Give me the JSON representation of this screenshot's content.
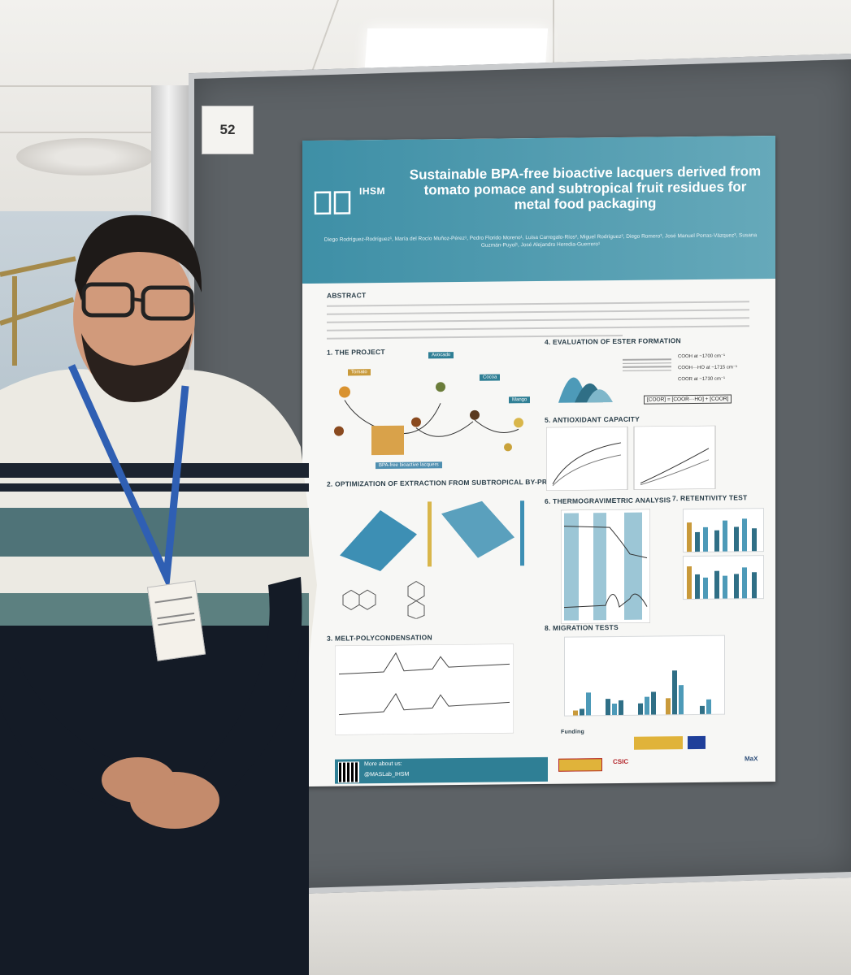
{
  "board": {
    "number": "52"
  },
  "poster": {
    "institute_logo": "IHSM",
    "title": "Sustainable BPA-free bioactive lacquers derived from tomato pomace and subtropical fruit residues for metal food packaging",
    "authors": "Diego Rodríguez-Rodríguez¹, María del Rocío Muñoz-Pérez¹, Pedro Florido Moreno¹, Luisa Carregalo-Ríos², Miguel Rodríguez², Diego Romero³, José Manuel Porras-Vázquez³, Susana Guzmán-Puyol¹, José Alejandro Heredia-Guerrero¹",
    "sections": {
      "abstract": "ABSTRACT",
      "project": "1. THE PROJECT",
      "optimization": "2. OPTIMIZATION OF EXTRACTION FROM SUBTROPICAL BY-PRODUCTS",
      "melt": "3. MELT-POLYCONDENSATION",
      "ester": "4. EVALUATION OF ESTER FORMATION",
      "antioxidant": "5. ANTIOXIDANT CAPACITY",
      "thermo": "6. THERMOGRAVIMETRIC ANALYSIS",
      "retentivity": "7. RETENTIVITY TEST",
      "migration": "8. MIGRATION TESTS"
    },
    "project_labels": {
      "tomato": "Tomato",
      "avocado": "Avocado",
      "cocoa": "Cocoa",
      "mango": "Mango",
      "lacquers": "BPA-free bioactive lacquers"
    },
    "ester_legend": [
      "COOH at ~1700 cm⁻¹",
      "COOH···HO at ~1715 cm⁻¹",
      "COOR at ~1730 cm⁻¹"
    ],
    "ester_formula": "[COOR] = [COOR···HO] + [COOR]",
    "funding_label": "Funding",
    "footer": {
      "more_about_us": "More about us:",
      "handle": "@MASLab_IHSM"
    },
    "partner_logos": [
      "CSIC",
      "MaX"
    ]
  },
  "colors": {
    "header_teal": "#3e8fa6",
    "board_grey": "#5d6266",
    "bar_teal": "#2f6f86",
    "bar_gold": "#c99a3b"
  }
}
